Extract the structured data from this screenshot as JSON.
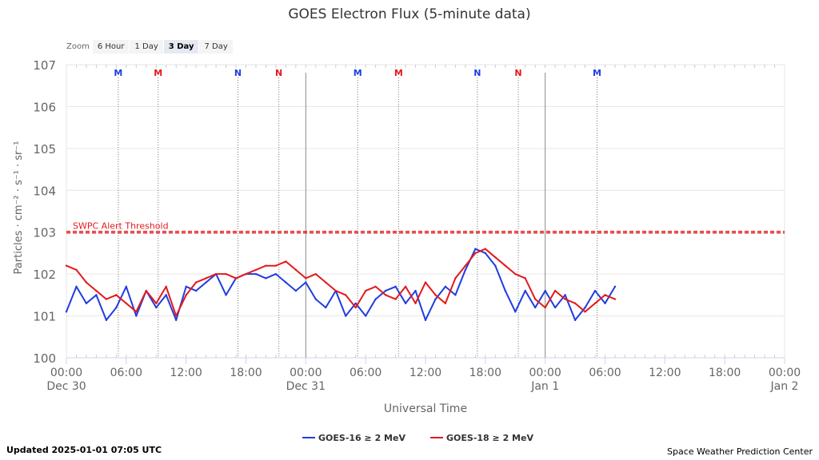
{
  "chart_data": {
    "type": "line",
    "title": "GOES Electron Flux (5-minute data)",
    "xlabel": "Universal Time",
    "ylabel": "Particles · cm⁻² · s⁻¹ · sr⁻¹",
    "yscale": "log",
    "ylim": [
      0,
      7
    ],
    "y_ticks": [
      {
        "exp": 0,
        "label": "100"
      },
      {
        "exp": 1,
        "label": "101"
      },
      {
        "exp": 2,
        "label": "102"
      },
      {
        "exp": 3,
        "label": "103"
      },
      {
        "exp": 4,
        "label": "104"
      },
      {
        "exp": 5,
        "label": "105"
      },
      {
        "exp": 6,
        "label": "106"
      },
      {
        "exp": 7,
        "label": "107"
      }
    ],
    "xlim": [
      "Dec 30 00:00",
      "Jan 2 00:00"
    ],
    "x_ticks": [
      {
        "hour": 0,
        "time": "00:00",
        "date": "Dec 30"
      },
      {
        "hour": 6,
        "time": "06:00",
        "date": ""
      },
      {
        "hour": 12,
        "time": "12:00",
        "date": ""
      },
      {
        "hour": 18,
        "time": "18:00",
        "date": ""
      },
      {
        "hour": 24,
        "time": "00:00",
        "date": "Dec 31"
      },
      {
        "hour": 30,
        "time": "06:00",
        "date": ""
      },
      {
        "hour": 36,
        "time": "12:00",
        "date": ""
      },
      {
        "hour": 42,
        "time": "18:00",
        "date": ""
      },
      {
        "hour": 48,
        "time": "00:00",
        "date": "Jan 1"
      },
      {
        "hour": 54,
        "time": "06:00",
        "date": ""
      },
      {
        "hour": 60,
        "time": "12:00",
        "date": ""
      },
      {
        "hour": 66,
        "time": "18:00",
        "date": ""
      },
      {
        "hour": 72,
        "time": "00:00",
        "date": "Jan 2"
      }
    ],
    "grid": true,
    "legend_position": "bottom-center",
    "threshold": {
      "label": "SWPC Alert Threshold",
      "value_exp": 3,
      "color": "#e31a1c"
    },
    "markers": [
      {
        "hour": 5.2,
        "label": "M",
        "color": "#1f3de0"
      },
      {
        "hour": 9.2,
        "label": "M",
        "color": "#e31a1c"
      },
      {
        "hour": 17.2,
        "label": "N",
        "color": "#1f3de0"
      },
      {
        "hour": 21.3,
        "label": "N",
        "color": "#e31a1c"
      },
      {
        "hour": 29.2,
        "label": "M",
        "color": "#1f3de0"
      },
      {
        "hour": 33.3,
        "label": "M",
        "color": "#e31a1c"
      },
      {
        "hour": 41.2,
        "label": "N",
        "color": "#1f3de0"
      },
      {
        "hour": 45.3,
        "label": "N",
        "color": "#e31a1c"
      },
      {
        "hour": 53.2,
        "label": "M",
        "color": "#1f3de0"
      }
    ],
    "series": [
      {
        "name": "GOES-16 ≥ 2 MeV",
        "color": "#1f3de0",
        "x_hours": [
          0,
          1,
          2,
          3,
          4,
          5,
          6,
          7,
          8,
          9,
          10,
          11,
          12,
          13,
          14,
          15,
          16,
          17,
          18,
          19,
          20,
          21,
          22,
          23,
          24,
          25,
          26,
          27,
          28,
          29,
          30,
          31,
          32,
          33,
          34,
          35,
          36,
          37,
          38,
          39,
          40,
          41,
          42,
          43,
          44,
          45,
          46,
          47,
          48,
          49,
          50,
          51,
          52,
          53,
          54,
          55
        ],
        "y_exp": [
          1.1,
          1.7,
          1.3,
          1.5,
          0.9,
          1.2,
          1.7,
          1.0,
          1.6,
          1.2,
          1.5,
          0.9,
          1.7,
          1.6,
          1.8,
          2.0,
          1.5,
          1.9,
          2.0,
          2.0,
          1.9,
          2.0,
          1.8,
          1.6,
          1.8,
          1.4,
          1.2,
          1.6,
          1.0,
          1.3,
          1.0,
          1.4,
          1.6,
          1.7,
          1.3,
          1.6,
          0.9,
          1.4,
          1.7,
          1.5,
          2.1,
          2.6,
          2.5,
          2.2,
          1.6,
          1.1,
          1.6,
          1.2,
          1.6,
          1.2,
          1.5,
          0.9,
          1.2,
          1.6,
          1.3,
          1.7
        ]
      },
      {
        "name": "GOES-18 ≥ 2 MeV",
        "color": "#e31a1c",
        "x_hours": [
          0,
          1,
          2,
          3,
          4,
          5,
          6,
          7,
          8,
          9,
          10,
          11,
          12,
          13,
          14,
          15,
          16,
          17,
          18,
          19,
          20,
          21,
          22,
          23,
          24,
          25,
          26,
          27,
          28,
          29,
          30,
          31,
          32,
          33,
          34,
          35,
          36,
          37,
          38,
          39,
          40,
          41,
          42,
          43,
          44,
          45,
          46,
          47,
          48,
          49,
          50,
          51,
          52,
          53,
          54,
          55
        ],
        "y_exp": [
          2.2,
          2.1,
          1.8,
          1.6,
          1.4,
          1.5,
          1.3,
          1.1,
          1.6,
          1.3,
          1.7,
          1.0,
          1.5,
          1.8,
          1.9,
          2.0,
          2.0,
          1.9,
          2.0,
          2.1,
          2.2,
          2.2,
          2.3,
          2.1,
          1.9,
          2.0,
          1.8,
          1.6,
          1.5,
          1.2,
          1.6,
          1.7,
          1.5,
          1.4,
          1.7,
          1.3,
          1.8,
          1.5,
          1.3,
          1.9,
          2.2,
          2.5,
          2.6,
          2.4,
          2.2,
          2.0,
          1.9,
          1.4,
          1.2,
          1.6,
          1.4,
          1.3,
          1.1,
          1.3,
          1.5,
          1.4
        ]
      }
    ]
  },
  "zoom": {
    "label": "Zoom",
    "buttons": [
      "6 Hour",
      "1 Day",
      "3 Day",
      "7 Day"
    ],
    "active": "3 Day"
  },
  "footer": {
    "updated": "Updated 2025-01-01 07:05 UTC",
    "credit": "Space Weather Prediction Center"
  }
}
